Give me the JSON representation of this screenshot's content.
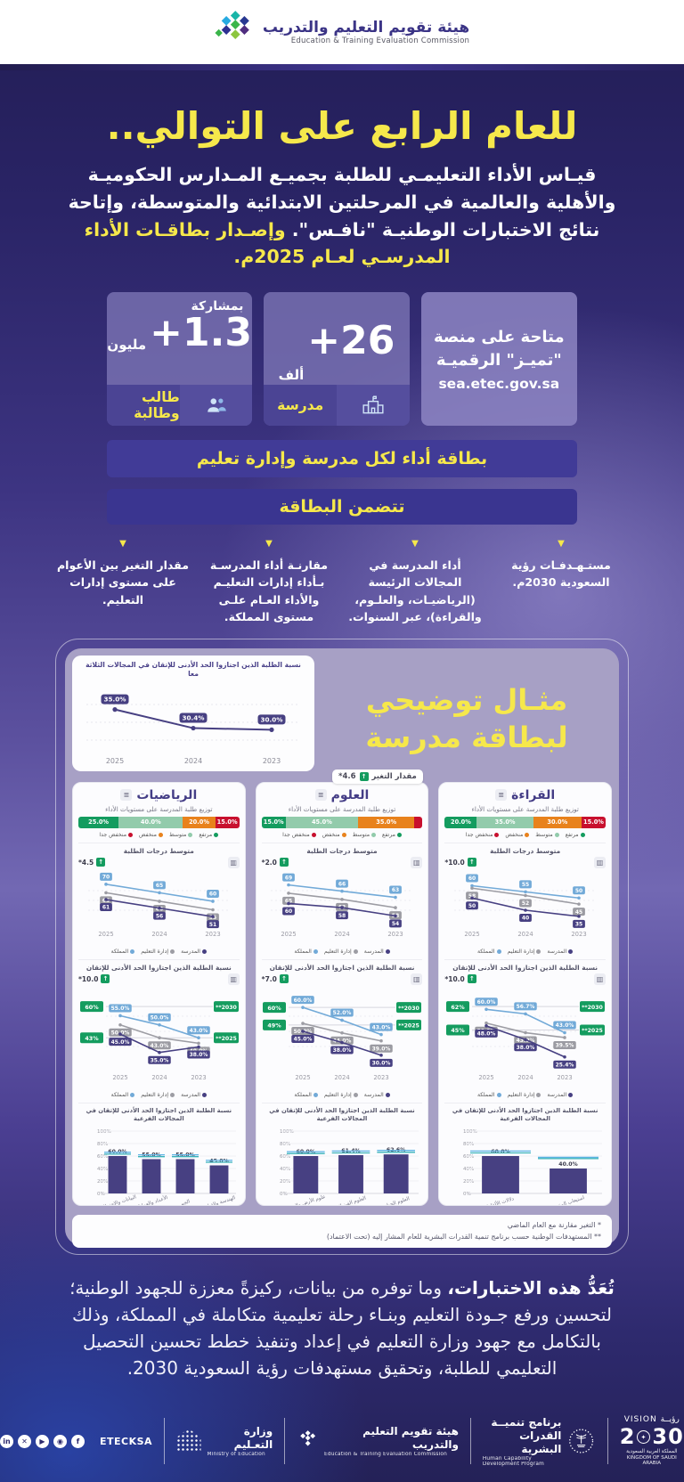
{
  "colors": {
    "yellow": "#f6e84b",
    "red": "#c8102e",
    "orange": "#e8821c",
    "light_green": "#92cbab",
    "green": "#149c5f",
    "school": "#474082",
    "admin": "#9d9da4",
    "kingdom": "#72aad8",
    "ref_admin": "#5fb4e5",
    "ref_kingdom": "#38b2ba"
  },
  "header": {
    "brand_ar": "هيئة تقويم التعليم والتدريب",
    "brand_en": "Education & Training Evaluation Commission"
  },
  "hero": {
    "title": "للعام الرابع على التوالي..",
    "body": "قيـاس الأداء التعليمـي للطلبة بجميـع المـدارس الحكوميـة والأهلية والعالمية في المرحلتين الابتدائية والمتوسطة، وإتاحة نتائج الاختبارات الوطنيـة \"نافـس\". ",
    "highlight": "وإصـدار بطاقـات الأداء المدرسـي لعـام 2025م."
  },
  "stats": {
    "platform": {
      "line1": "متاحة على منصة",
      "line2": "\"تميـز\" الرقميـة",
      "url": "sea.etec.gov.sa"
    },
    "schools": {
      "value": "+26",
      "unit": "ألف",
      "label": "مدرسة"
    },
    "students": {
      "kicker": "بمشاركة",
      "value": "+1.3",
      "unit": "مليون",
      "label": "طالب وطالبة"
    }
  },
  "banners": {
    "performance": "بطاقة أداء لكل مدرسة وإدارة تعليم",
    "includes": "تتضمن البطاقة"
  },
  "features": [
    "مستـهـدفـات رؤية السعودية 2030م.",
    "أداء المدرسة في المجالات الرئيسة (الرياضيـات، والعلـوم، والقراءة)، عبر السنوات.",
    "مقارنـة أداء المدرسـة بـأداء إدارات التعليـم والأداء العـام علـى مستوى المملكة.",
    "مقدار التغير بين الأعوام على مستوى إدارات التعليم."
  ],
  "example": {
    "heading1": "مثـال توضيحي",
    "heading2": "لبطاقة مدرسة",
    "change_label": "مقدار التغير",
    "change_value": "4.6*",
    "legend_levels": [
      "مرتفع",
      "متوسط",
      "منخفض",
      "منخفض جدا"
    ],
    "legend_series": [
      "المدرسة",
      "إدارة التعليم",
      "المملكة"
    ],
    "dist_title": "توزيع طلبة المدرسة على مستويات الأداء",
    "avg_title": "متوسط درجات الطلبة",
    "mastery_title": "نسبة الطلبة الذين اجتازوا الحد الأدنى للإتقان",
    "skills_title": "نسبة الطلبة الذين اجتازوا الحد الأدنى للإتقان في المجالات الفرعية",
    "footnote1": "* التغير مقارنة مع العام الماضي",
    "footnote2": "** المستهدفات الوطنية حسب برنامج تنمية القدرات البشرية للعام المشار إليه (تحت الاعتماد)"
  },
  "chart_data": {
    "overall_trend": {
      "type": "line",
      "title": "نسبة الطلبة الذين اجتازوا الحد الأدنى للإتقان في المجالات الثلاثة معا",
      "x": [
        "2025",
        "2024",
        "2023"
      ],
      "values": [
        35.0,
        30.4,
        30.0
      ],
      "labels": [
        "35.0%",
        "30.4%",
        "30.0%"
      ],
      "range": [
        27,
        38
      ],
      "change": "4.6"
    },
    "subjects": [
      {
        "title": "القراءة",
        "distribution": [
          {
            "label": "منخفض جدا",
            "value": 15,
            "pct": "15.0%",
            "color": "red"
          },
          {
            "label": "منخفض",
            "value": 30,
            "pct": "30.0%",
            "color": "orange"
          },
          {
            "label": "متوسط",
            "value": 35,
            "pct": "35.0%",
            "color": "light_green"
          },
          {
            "label": "مرتفع",
            "value": 20,
            "pct": "20.0%",
            "color": "green"
          }
        ],
        "avg": {
          "type": "line",
          "change": "*10.0",
          "years": [
            "2025",
            "2024",
            "2023"
          ],
          "range": [
            32,
            64
          ],
          "school": {
            "values": [
              50,
              40,
              35
            ],
            "labels": [
              "50",
              "40",
              "35"
            ]
          },
          "admin": {
            "values": [
              58,
              52,
              45
            ],
            "labels": [
              "58",
              "52",
              "45"
            ]
          },
          "kingdom": {
            "values": [
              60,
              55,
              50
            ],
            "labels": [
              "60",
              "55",
              "50"
            ]
          }
        },
        "mastery": {
          "type": "line",
          "change": "*10.0",
          "years": [
            "2025",
            "2024",
            "2023"
          ],
          "range": [
            22,
            66
          ],
          "target_2030": {
            "label": "2030**",
            "value": 62,
            "value_label": "62%"
          },
          "target_2025": {
            "label": "2025**",
            "value": 45,
            "value_label": "45%"
          },
          "school": {
            "values": [
              48.0,
              38.0,
              25.4
            ],
            "labels": [
              "48.0%",
              "38.0%",
              "25.4%"
            ]
          },
          "admin": {
            "values": [
              50.0,
              43.0,
              39.5
            ],
            "labels": [
              "50.0%",
              "43.0%",
              "39.5%"
            ]
          },
          "kingdom": {
            "values": [
              60.0,
              56.7,
              43.0
            ],
            "labels": [
              "60.0%",
              "56.7%",
              "43.0%"
            ]
          }
        },
        "skills": {
          "type": "bar",
          "categories": [
            "دلالات الألفاظ",
            "استيعاب المقروء"
          ],
          "values": [
            60.0,
            40.0
          ],
          "labels": [
            "60.0%",
            "40.0%"
          ],
          "admin_ref": [
            68,
            58
          ],
          "kingdom_ref": [
            65,
            56
          ],
          "ylim": [
            0,
            100
          ]
        }
      },
      {
        "title": "العلوم",
        "distribution": [
          {
            "label": "منخفض جدا",
            "value": 5,
            "pct": "5.0%",
            "color": "red"
          },
          {
            "label": "منخفض",
            "value": 35,
            "pct": "35.0%",
            "color": "orange"
          },
          {
            "label": "متوسط",
            "value": 45,
            "pct": "45.0%",
            "color": "light_green"
          },
          {
            "label": "مرتفع",
            "value": 15,
            "pct": "15.0%",
            "color": "green"
          }
        ],
        "avg": {
          "type": "line",
          "change": "*2.0",
          "years": [
            "2025",
            "2024",
            "2023"
          ],
          "range": [
            52,
            71
          ],
          "school": {
            "values": [
              60,
              58,
              54
            ],
            "labels": [
              "60",
              "58",
              "54"
            ]
          },
          "admin": {
            "values": [
              65,
              62,
              58
            ],
            "labels": [
              "65",
              "62",
              "58"
            ]
          },
          "kingdom": {
            "values": [
              69,
              66,
              63
            ],
            "labels": [
              "69",
              "66",
              "63"
            ]
          }
        },
        "mastery": {
          "type": "line",
          "change": "*7.0",
          "years": [
            "2025",
            "2024",
            "2023"
          ],
          "range": [
            26,
            64
          ],
          "target_2030": {
            "label": "2030**",
            "value": 60,
            "value_label": "60%"
          },
          "target_2025": {
            "label": "2025**",
            "value": 49,
            "value_label": "49%"
          },
          "school": {
            "values": [
              45.0,
              38.0,
              30.0
            ],
            "labels": [
              "45.0%",
              "38.0%",
              "30.0%"
            ]
          },
          "admin": {
            "values": [
              50.0,
              44.0,
              39.0
            ],
            "labels": [
              "50.0%",
              "44.0%",
              "39.0%"
            ]
          },
          "kingdom": {
            "values": [
              60.0,
              52.0,
              43.0
            ],
            "labels": [
              "60.0%",
              "52.0%",
              "43.0%"
            ]
          }
        },
        "skills": {
          "type": "bar",
          "categories": [
            "علوم الأرض والفضاء",
            "العلوم الفيزيائية",
            "العلوم الحياتية"
          ],
          "values": [
            60.0,
            61.4,
            62.6
          ],
          "labels": [
            "60.0%",
            "61.4%",
            "62.6%"
          ],
          "admin_ref": [
            67,
            68,
            69
          ],
          "kingdom_ref": [
            64,
            65,
            66
          ],
          "ylim": [
            0,
            100
          ]
        }
      },
      {
        "title": "الرياضيات",
        "distribution": [
          {
            "label": "منخفض جدا",
            "value": 15,
            "pct": "15.0%",
            "color": "red"
          },
          {
            "label": "منخفض",
            "value": 20,
            "pct": "20.0%",
            "color": "orange"
          },
          {
            "label": "متوسط",
            "value": 40,
            "pct": "40.0%",
            "color": "light_green"
          },
          {
            "label": "مرتفع",
            "value": 25,
            "pct": "25.0%",
            "color": "green"
          }
        ],
        "avg": {
          "type": "line",
          "change": "*4.5",
          "years": [
            "2025",
            "2024",
            "2023"
          ],
          "range": [
            49,
            72
          ],
          "school": {
            "values": [
              61,
              56,
              51
            ],
            "labels": [
              "61",
              "56",
              "51"
            ]
          },
          "admin": {
            "values": [
              65,
              60,
              55
            ],
            "labels": [
              "65",
              "60",
              "55"
            ]
          },
          "kingdom": {
            "values": [
              70,
              65,
              60
            ],
            "labels": [
              "70",
              "65",
              "60"
            ]
          }
        },
        "mastery": {
          "type": "line",
          "change": "*10.0",
          "years": [
            "2025",
            "2024",
            "2023"
          ],
          "range": [
            30,
            63
          ],
          "target_2030": {
            "label": "2030**",
            "value": 60,
            "value_label": "60%"
          },
          "target_2025": {
            "label": "2025**",
            "value": 43,
            "value_label": "43%"
          },
          "school": {
            "values": [
              45.0,
              35.0,
              38.0
            ],
            "labels": [
              "45.0%",
              "35.0%",
              "38.0%"
            ]
          },
          "admin": {
            "values": [
              50.0,
              43.0,
              40.0
            ],
            "labels": [
              "50.0%",
              "43.0%",
              "40.0%"
            ]
          },
          "kingdom": {
            "values": [
              55.0,
              50.0,
              43.0
            ],
            "labels": [
              "55.0%",
              "50.0%",
              "43.0%"
            ]
          }
        },
        "skills": {
          "type": "bar",
          "categories": [
            "البيانات والاحتمالات",
            "الأعداد والعمليات",
            "الجبر",
            "الهندسة والقياس"
          ],
          "values": [
            60.0,
            55.0,
            55.0,
            45.0
          ],
          "labels": [
            "60.0%",
            "55.0%",
            "55.0%",
            "45.0%"
          ],
          "admin_ref": [
            66,
            62,
            62,
            53
          ],
          "kingdom_ref": [
            63,
            59,
            59,
            50
          ],
          "ylim": [
            0,
            100
          ]
        }
      }
    ]
  },
  "closing": {
    "bold": "تُعَدُّ هذه الاختبارات،",
    "rest": " وما توفره من بيانات، ركيزةً معززة للجهود الوطنية؛ لتحسين ورفع جـودة التعليم وبنـاء رحلة تعليمية متكاملة في المملكة، وذلك بالتكامل مع جهود وزارة التعليم في إعداد وتنفيذ خطط تحسين التحصيل التعليمي للطلبة، وتحقيق مستهدفات رؤية السعودية 2030."
  },
  "footer": {
    "handle": "ETECKSA",
    "social": [
      "in",
      "✕",
      "▶",
      "◉",
      "f"
    ],
    "ministry_ar": "وزارة التعـليم",
    "ministry_en": "Ministry of Education",
    "etec_ar": "هيئة تقويم التعليم والتدريب",
    "etec_en": "Education & Training Evaluation Commission",
    "hcdp_ar1": "برنامج تنميــة",
    "hcdp_ar2": "القدرات البشرية",
    "hcdp_en1": "Human Capability",
    "hcdp_en2": "Development Program",
    "vision_ar": "رؤيــة",
    "vision_en": "VISION",
    "vision_num_left": "2",
    "vision_num_right": "30",
    "vision_ar2": "المملكة العربية السعودية",
    "vision_en2": "KINGDOM OF SAUDI ARABIA"
  }
}
